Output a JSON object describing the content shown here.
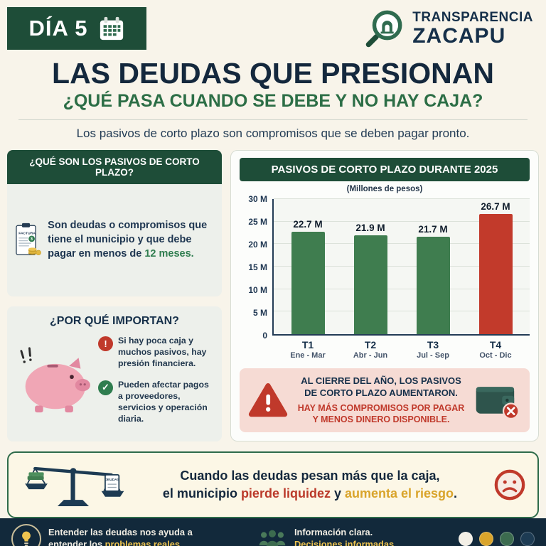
{
  "colors": {
    "dark_green": "#1e4d38",
    "navy": "#16304a",
    "green": "#2f7d4f",
    "red": "#c0392b",
    "gold": "#d9a42b",
    "cream": "#f8f4ea",
    "box_gray": "#edf0eb",
    "alert_bg": "#f6dbd4",
    "banner_bg": "#fcf7e6",
    "footer_bg": "#12293b"
  },
  "header": {
    "day": "DÍA 5",
    "brand_top": "TRANSPARENCIA",
    "brand_bottom": "ZACAPU"
  },
  "title": {
    "main": "LAS DEUDAS QUE PRESIONAN",
    "subtitle": "¿QUÉ PASA CUANDO SE DEBE Y NO HAY CAJA?",
    "tagline": "Los pasivos de corto plazo son compromisos que se deben pagar pronto."
  },
  "definition_box": {
    "header": "¿QUÉ SON LOS PASIVOS DE CORTO PLAZO?",
    "factura_label": "FACTURA",
    "currency_symbol": "$",
    "text": "Son deudas o compromisos que tiene el municipio y que debe pagar en menos de ",
    "highlight": "12 meses."
  },
  "importance_box": {
    "header": "¿POR QUÉ IMPORTAN?",
    "points": [
      {
        "glyph": "!",
        "text": "Si hay poca caja y muchos pasivos, hay presión financiera."
      },
      {
        "glyph": "✓",
        "text": "Pueden afectar pagos a proveedores, servicios y operación diaria."
      }
    ]
  },
  "chart_data": {
    "type": "bar",
    "title": "PASIVOS DE CORTO PLAZO DURANTE 2025",
    "subtitle": "(Millones de pesos)",
    "categories": [
      "T1",
      "T2",
      "T3",
      "T4"
    ],
    "category_sublabels": [
      "Ene - Mar",
      "Abr - Jun",
      "Jul - Sep",
      "Oct - Dic"
    ],
    "values": [
      22.7,
      21.9,
      21.7,
      26.7
    ],
    "value_labels": [
      "22.7 M",
      "21.9 M",
      "21.7 M",
      "26.7 M"
    ],
    "bar_colors": [
      "#3f7d4f",
      "#3f7d4f",
      "#3f7d4f",
      "#c23a2b"
    ],
    "ylim": [
      0,
      30
    ],
    "yticks": [
      30,
      25,
      20,
      15,
      10,
      5,
      0
    ],
    "ytick_labels": [
      "30 M",
      "25 M",
      "20 M",
      "15 M",
      "10 M",
      "5 M",
      "0"
    ],
    "grid": true,
    "legend": "none"
  },
  "alert": {
    "line1": "AL CIERRE DEL AÑO, LOS PASIVOS DE CORTO PLAZO AUMENTARON.",
    "line2": "HAY MÁS COMPROMISOS POR PAGAR Y MENOS DINERO DISPONIBLE."
  },
  "banner": {
    "line1": "Cuando las deudas pesan más que la caja,",
    "line2_pre": "el municipio ",
    "line2_hl1": "pierde liquidez",
    "line2_mid": " y ",
    "line2_hl2": "aumenta el riesgo",
    "line2_end": ".",
    "deudas_label": "DEUDAS"
  },
  "footer": {
    "left_pre": "Entender las deudas nos ayuda a entender los ",
    "left_hl": "problemas reales.",
    "right_line1": "Información clara.",
    "right_line2": "Decisiones informadas.",
    "dots": [
      "#f3efe6",
      "#d9a42b",
      "#3c6b4f",
      "#1d3b53"
    ]
  }
}
